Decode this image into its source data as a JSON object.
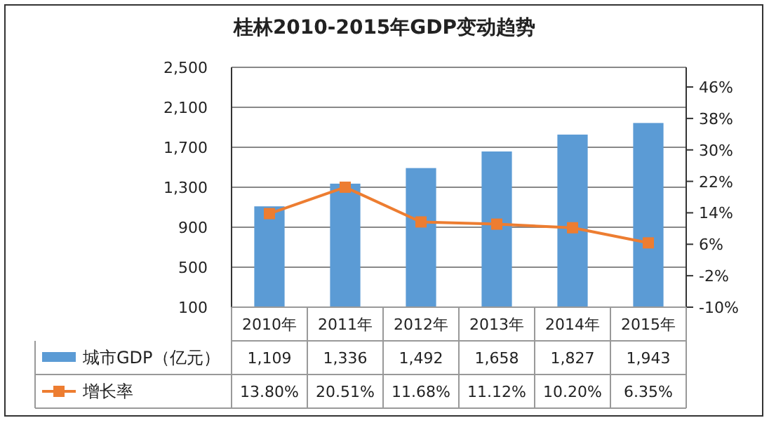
{
  "chart_data": {
    "type": "bar",
    "title": "桂林2010-2015年GDP变动趋势",
    "categories": [
      "2010年",
      "2011年",
      "2012年",
      "2013年",
      "2014年",
      "2015年"
    ],
    "series": [
      {
        "name": "城市GDP（亿元）",
        "color": "#5b9bd5",
        "values": [
          1109,
          1336,
          1492,
          1658,
          1827,
          1943
        ],
        "value_labels": [
          "1,109",
          "1,336",
          "1,492",
          "1,658",
          "1,827",
          "1,943"
        ]
      },
      {
        "name": "增长率",
        "type": "line",
        "axis": "y2",
        "marker": "square",
        "color": "#ed7d31",
        "values": [
          13.8,
          20.51,
          11.68,
          11.12,
          10.2,
          6.35
        ],
        "value_labels": [
          "13.80%",
          "20.51%",
          "11.68%",
          "11.12%",
          "10.20%",
          "6.35%"
        ]
      }
    ],
    "ylim": [
      100,
      2500
    ],
    "yticks": [
      {
        "value": 100,
        "label": "100"
      },
      {
        "value": 500,
        "label": "500"
      },
      {
        "value": 900,
        "label": "900"
      },
      {
        "value": 1300,
        "label": "1,300"
      },
      {
        "value": 1700,
        "label": "1,700"
      },
      {
        "value": 2100,
        "label": "2,100"
      },
      {
        "value": 2500,
        "label": "2,500"
      }
    ],
    "y2lim": [
      -10,
      51
    ],
    "y2ticks": [
      {
        "value": -10,
        "label": "-10%"
      },
      {
        "value": -2,
        "label": "-2%"
      },
      {
        "value": 6,
        "label": "6%"
      },
      {
        "value": 14,
        "label": "14%"
      },
      {
        "value": 22,
        "label": "22%"
      },
      {
        "value": 30,
        "label": "30%"
      },
      {
        "value": 38,
        "label": "38%"
      },
      {
        "value": 46,
        "label": "46%"
      }
    ],
    "grid": "y",
    "legend": "bottom"
  }
}
